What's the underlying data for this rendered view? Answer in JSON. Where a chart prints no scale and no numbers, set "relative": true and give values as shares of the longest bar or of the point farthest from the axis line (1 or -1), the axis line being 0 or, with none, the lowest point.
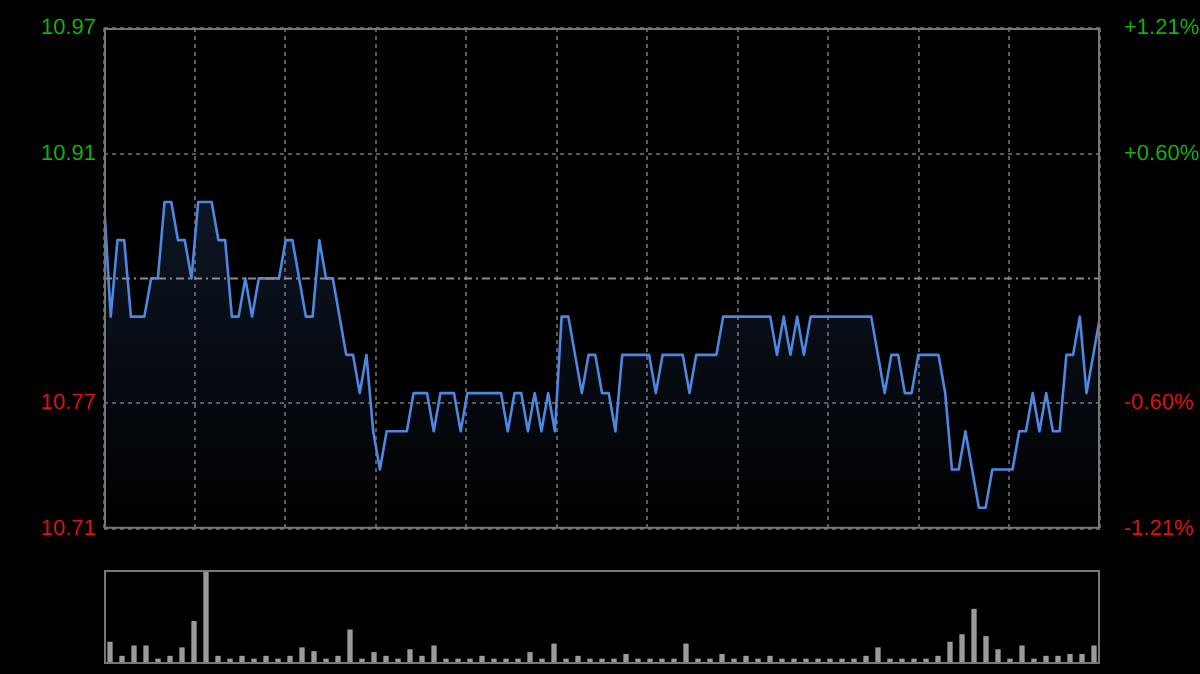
{
  "chart_data": [
    {
      "type": "area",
      "color": "#4f86e0",
      "categories": [
        null,
        null,
        null,
        null,
        null,
        null,
        null,
        null,
        null,
        null,
        null,
        null,
        null,
        null,
        null,
        null,
        null,
        null,
        null,
        null,
        null,
        null,
        null,
        null,
        null,
        null,
        null,
        null,
        null,
        null,
        null,
        null,
        null,
        null,
        null,
        null,
        null,
        null,
        null,
        null,
        null,
        null,
        null,
        null,
        null,
        null,
        null,
        null,
        null,
        null,
        null,
        null,
        null,
        null,
        null,
        null,
        null,
        null,
        null,
        null,
        null,
        null,
        null,
        null,
        null,
        null,
        null,
        null,
        null,
        null,
        null,
        null,
        null,
        null,
        null,
        null,
        null,
        null,
        null,
        null,
        null,
        null,
        null,
        null,
        null,
        null,
        null,
        null,
        null,
        null,
        null,
        null,
        null,
        null,
        null,
        null,
        null,
        null,
        null,
        null,
        null,
        null,
        null,
        null,
        null,
        null,
        null,
        null,
        null,
        null,
        null,
        null,
        null,
        null,
        null,
        null,
        null,
        null,
        null,
        null,
        null,
        null,
        null,
        null,
        null,
        null,
        null,
        null,
        null,
        null,
        null,
        null,
        null,
        null,
        null,
        null,
        null,
        null,
        null,
        null,
        null,
        null,
        null,
        null,
        null,
        null,
        null,
        null,
        null
      ],
      "values": [
        10.88,
        10.82,
        10.86,
        10.86,
        10.82,
        10.82,
        10.82,
        10.84,
        10.84,
        10.88,
        10.88,
        10.86,
        10.86,
        10.84,
        10.88,
        10.88,
        10.88,
        10.86,
        10.86,
        10.82,
        10.82,
        10.84,
        10.82,
        10.84,
        10.84,
        10.84,
        10.84,
        10.86,
        10.86,
        10.84,
        10.82,
        10.82,
        10.86,
        10.84,
        10.84,
        10.82,
        10.8,
        10.8,
        10.78,
        10.8,
        10.76,
        10.74,
        10.76,
        10.76,
        10.76,
        10.76,
        10.78,
        10.78,
        10.78,
        10.76,
        10.78,
        10.78,
        10.78,
        10.76,
        10.78,
        10.78,
        10.78,
        10.78,
        10.78,
        10.78,
        10.76,
        10.78,
        10.78,
        10.76,
        10.78,
        10.76,
        10.78,
        10.76,
        10.82,
        10.82,
        10.8,
        10.78,
        10.8,
        10.8,
        10.78,
        10.78,
        10.76,
        10.8,
        10.8,
        10.8,
        10.8,
        10.8,
        10.78,
        10.8,
        10.8,
        10.8,
        10.8,
        10.78,
        10.8,
        10.8,
        10.8,
        10.8,
        10.82,
        10.82,
        10.82,
        10.82,
        10.82,
        10.82,
        10.82,
        10.82,
        10.8,
        10.82,
        10.8,
        10.82,
        10.8,
        10.82,
        10.82,
        10.82,
        10.82,
        10.82,
        10.82,
        10.82,
        10.82,
        10.82,
        10.82,
        10.8,
        10.78,
        10.8,
        10.8,
        10.78,
        10.78,
        10.8,
        10.8,
        10.8,
        10.8,
        10.78,
        10.74,
        10.74,
        10.76,
        10.74,
        10.72,
        10.72,
        10.74,
        10.74,
        10.74,
        10.74,
        10.76,
        10.76,
        10.78,
        10.76,
        10.78,
        10.76,
        10.76,
        10.8,
        10.8,
        10.82,
        10.78,
        10.8,
        10.82
      ],
      "ylim": [
        10.709,
        10.971
      ],
      "yticks": [
        {
          "value": 10.971,
          "label": "10.97"
        },
        {
          "value": 10.905,
          "label": "10.91"
        },
        {
          "value": 10.775,
          "label": "10.77"
        },
        {
          "value": 10.709,
          "label": "10.71"
        }
      ],
      "y2lim": [
        -1.21,
        1.21
      ],
      "y2ticks": [
        {
          "value": 1.21,
          "label": "+1.21%"
        },
        {
          "value": 0.6,
          "label": "+0.60%"
        },
        {
          "value": -0.6,
          "label": "-0.60%"
        },
        {
          "value": -1.21,
          "label": "-1.21%"
        }
      ],
      "ref_lines": [
        {
          "axis": "y",
          "value": 10.84
        }
      ],
      "grid": true,
      "legend": false,
      "tick_labels": "y"
    },
    {
      "type": "bar",
      "relative": true,
      "color": "#9a9a9a",
      "categories": [
        null,
        null,
        null,
        null,
        null,
        null,
        null,
        null,
        null,
        null,
        null,
        null,
        null,
        null,
        null,
        null,
        null,
        null,
        null,
        null,
        null,
        null,
        null,
        null,
        null,
        null,
        null,
        null,
        null,
        null,
        null,
        null,
        null,
        null,
        null,
        null,
        null,
        null,
        null,
        null,
        null,
        null,
        null,
        null,
        null,
        null,
        null,
        null,
        null,
        null,
        null,
        null,
        null,
        null,
        null,
        null,
        null,
        null,
        null,
        null,
        null,
        null,
        null,
        null,
        null,
        null,
        null,
        null,
        null,
        null,
        null,
        null,
        null,
        null,
        null,
        null,
        null,
        null,
        null,
        null,
        null,
        null,
        null
      ],
      "values": [
        0.23,
        0.08,
        0.19,
        0.19,
        0.05,
        0.08,
        0.17,
        0.45,
        1,
        0.08,
        0.05,
        0.08,
        0.05,
        0.08,
        0.05,
        0.08,
        0.17,
        0.13,
        0.05,
        0.08,
        0.36,
        0.05,
        0.12,
        0.08,
        0.05,
        0.15,
        0.08,
        0.19,
        0.05,
        0.05,
        0.05,
        0.08,
        0.05,
        0.05,
        0.05,
        0.12,
        0.05,
        0.21,
        0.05,
        0.08,
        0.05,
        0.05,
        0.05,
        0.1,
        0.05,
        0.05,
        0.05,
        0.05,
        0.21,
        0.05,
        0.05,
        0.1,
        0.05,
        0.08,
        0.05,
        0.08,
        0.05,
        0.05,
        0.05,
        0.05,
        0.05,
        0.05,
        0.05,
        0.08,
        0.17,
        0.05,
        0.05,
        0.05,
        0.05,
        0.08,
        0.23,
        0.31,
        0.58,
        0.29,
        0.15,
        0.05,
        0.19,
        0.05,
        0.08,
        0.08,
        0.1,
        0.1,
        0.19
      ],
      "legend": false,
      "tick_labels": false
    }
  ]
}
